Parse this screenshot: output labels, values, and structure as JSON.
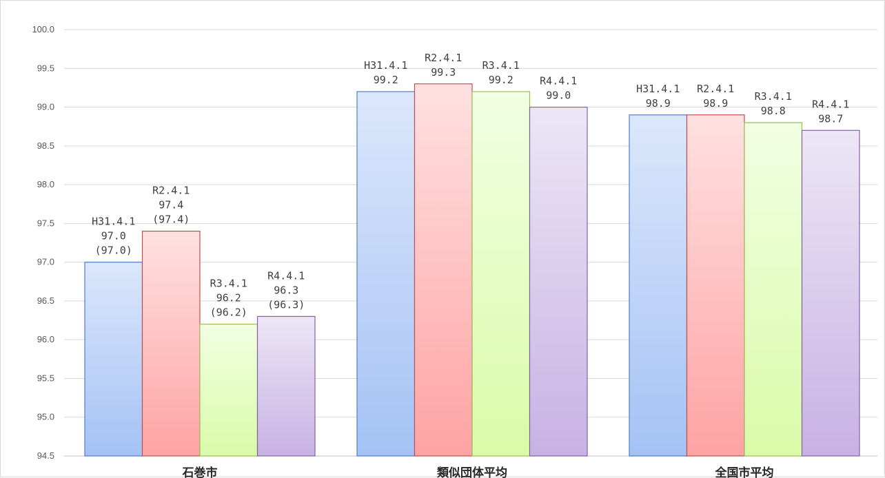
{
  "chart_data": {
    "type": "bar",
    "categories": [
      "石巻市",
      "類似団体平均",
      "全国市平均"
    ],
    "ylim": [
      94.5,
      100.0
    ],
    "yticks": [
      "94.5",
      "95.0",
      "95.5",
      "96.0",
      "96.5",
      "97.0",
      "97.5",
      "98.0",
      "98.5",
      "99.0",
      "99.5",
      "100.0"
    ],
    "grid": true,
    "series": [
      {
        "name": "H31.4.1",
        "values": [
          97.0,
          99.2,
          98.9
        ],
        "labels": [
          [
            "H31.4.1",
            "97.0",
            "(97.0)"
          ],
          [
            "H31.4.1",
            "99.2"
          ],
          [
            "H31.4.1",
            "98.9"
          ]
        ],
        "colors": {
          "top": "#dbe7fb",
          "bottom": "#a5c2f5",
          "stroke": "#4f7fc0"
        }
      },
      {
        "name": "R2.4.1",
        "values": [
          97.4,
          99.3,
          98.9
        ],
        "labels": [
          [
            "R2.4.1",
            "97.4",
            "(97.4)"
          ],
          [
            "R2.4.1",
            "99.3"
          ],
          [
            "R2.4.1",
            "98.9"
          ]
        ],
        "colors": {
          "top": "#ffe1e1",
          "bottom": "#ffa3a3",
          "stroke": "#c0504d"
        }
      },
      {
        "name": "R3.4.1",
        "values": [
          96.2,
          99.2,
          98.8
        ],
        "labels": [
          [
            "R3.4.1",
            "96.2",
            "(96.2)"
          ],
          [
            "R3.4.1",
            "99.2"
          ],
          [
            "R3.4.1",
            "98.8"
          ]
        ],
        "colors": {
          "top": "#f2ffe3",
          "bottom": "#d9fba8",
          "stroke": "#9bbb59"
        }
      },
      {
        "name": "R4.4.1",
        "values": [
          96.3,
          99.0,
          98.7
        ],
        "labels": [
          [
            "R4.4.1",
            "96.3",
            "(96.3)"
          ],
          [
            "R4.4.1",
            "99.0"
          ],
          [
            "R4.4.1",
            "98.7"
          ]
        ],
        "colors": {
          "top": "#ece6f6",
          "bottom": "#c8b2e4",
          "stroke": "#8064a2"
        }
      }
    ]
  }
}
